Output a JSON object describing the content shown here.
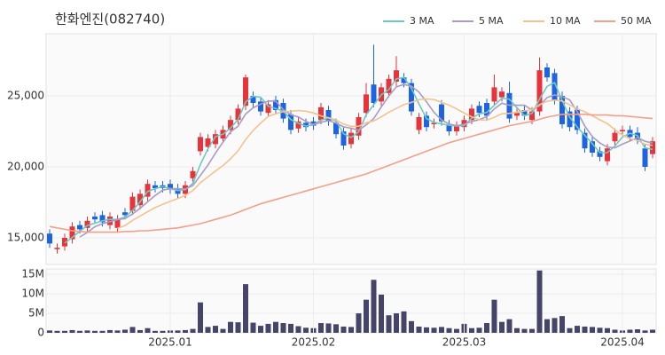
{
  "chart_data": [
    {
      "type": "candlestick",
      "title": "한화엔진(082740)",
      "open": [
        15300,
        14200,
        14400,
        14900,
        15900,
        15700,
        16500,
        16600,
        15900,
        15700,
        16800,
        16900,
        17300,
        17900,
        18700,
        18700,
        18800,
        18500,
        18100,
        19200,
        21100,
        21400,
        21600,
        22000,
        22600,
        23300,
        24300,
        25000,
        24600,
        23800,
        24700,
        24500,
        23700,
        22700,
        23100,
        23200,
        23300,
        24000,
        23100,
        22500,
        21600,
        22200,
        23800,
        25800,
        24600,
        25200,
        26000,
        26300,
        25900,
        22600,
        23600,
        23000,
        24400,
        23000,
        22500,
        22800,
        23300,
        24300,
        24500,
        24600,
        24900,
        25200,
        23600,
        24000,
        23300,
        23900,
        27000,
        26600,
        25000,
        23900,
        24000,
        22400,
        21800,
        21100,
        20400,
        21800,
        22500,
        22600,
        22400,
        21300,
        20900
      ],
      "high": [
        15600,
        14600,
        15300,
        16100,
        16200,
        16500,
        16800,
        16900,
        16800,
        16600,
        17100,
        18200,
        18400,
        19100,
        19000,
        19000,
        19100,
        18800,
        19000,
        20000,
        22400,
        22300,
        22600,
        22900,
        23600,
        24400,
        26500,
        25300,
        24900,
        24700,
        25000,
        24800,
        24000,
        23500,
        23400,
        23500,
        24500,
        24300,
        23400,
        22800,
        22700,
        23800,
        25900,
        28600,
        25900,
        26500,
        27800,
        26600,
        26200,
        23800,
        23900,
        23400,
        24700,
        23300,
        23200,
        23600,
        24400,
        24600,
        24800,
        26500,
        25600,
        26000,
        24100,
        24300,
        24200,
        27700,
        27300,
        26900,
        25300,
        24200,
        24300,
        22700,
        22100,
        21400,
        21600,
        22700,
        22900,
        22900,
        22800,
        21600,
        22100
      ],
      "low": [
        14300,
        13900,
        14100,
        14600,
        15300,
        15400,
        16000,
        15800,
        15600,
        15400,
        16300,
        16600,
        17000,
        17600,
        18200,
        18200,
        18100,
        17800,
        17800,
        18900,
        20800,
        21100,
        21300,
        21700,
        22300,
        23000,
        24000,
        24200,
        23600,
        23500,
        23700,
        23100,
        22300,
        22400,
        22500,
        22600,
        23000,
        22900,
        22000,
        21200,
        21300,
        21900,
        23500,
        24200,
        24300,
        24900,
        25700,
        25600,
        23600,
        22300,
        22500,
        22700,
        22900,
        22200,
        22200,
        22500,
        23000,
        23500,
        23300,
        24300,
        24600,
        23100,
        23300,
        23300,
        23000,
        23600,
        26000,
        24400,
        22700,
        22500,
        22300,
        21000,
        20700,
        20400,
        20100,
        21500,
        22200,
        21800,
        21600,
        19700,
        20600
      ],
      "close": [
        14600,
        14300,
        15000,
        15800,
        15600,
        16200,
        16300,
        16100,
        16500,
        16300,
        16600,
        17900,
        18100,
        18800,
        18500,
        18500,
        18400,
        18100,
        18700,
        19700,
        22100,
        22000,
        22300,
        22600,
        23300,
        24100,
        26300,
        24500,
        23900,
        24400,
        24000,
        23400,
        22600,
        23200,
        22800,
        22900,
        24200,
        23200,
        22300,
        21500,
        22400,
        23500,
        25100,
        24500,
        25600,
        26200,
        26800,
        25900,
        23900,
        23500,
        22800,
        23100,
        23200,
        22500,
        22900,
        23300,
        24100,
        23800,
        23600,
        25600,
        25300,
        23400,
        23800,
        23600,
        23900,
        26800,
        26300,
        24700,
        23000,
        22800,
        22600,
        21300,
        21000,
        20700,
        21300,
        22400,
        22600,
        22100,
        21900,
        20000,
        21800
      ],
      "up_color": "#e8333a",
      "down_color": "#1e64e0",
      "series": [
        {
          "name": "3 MA",
          "color": "#6cc9c4",
          "values": [
            null,
            null,
            14633,
            15033,
            15467,
            15867,
            16033,
            16200,
            16300,
            16300,
            16467,
            16933,
            17533,
            18267,
            18467,
            18600,
            18467,
            18333,
            18400,
            18833,
            20167,
            21267,
            22133,
            22300,
            22733,
            23333,
            24567,
            24967,
            24900,
            24267,
            24100,
            23933,
            23333,
            23067,
            22867,
            22967,
            23300,
            23433,
            23233,
            22333,
            22067,
            22467,
            23667,
            24367,
            25067,
            25433,
            26200,
            26300,
            25533,
            24433,
            23400,
            23133,
            23033,
            22933,
            22867,
            22900,
            23433,
            23733,
            23833,
            24333,
            24833,
            24767,
            24167,
            23600,
            23767,
            24767,
            25667,
            25933,
            24667,
            23500,
            22800,
            22233,
            21633,
            21000,
            21000,
            21467,
            22100,
            22367,
            22200,
            21333,
            21233
          ]
        },
        {
          "name": "5 MA",
          "color": "#a99bc6",
          "values": [
            null,
            null,
            null,
            null,
            15060,
            15380,
            15780,
            16000,
            16140,
            16280,
            16360,
            16680,
            17080,
            17540,
            17980,
            18360,
            18460,
            18460,
            18440,
            18680,
            19400,
            20120,
            20960,
            21740,
            22460,
            22860,
            23720,
            24160,
            24420,
            24640,
            24620,
            24040,
            23660,
            23520,
            23200,
            22980,
            23140,
            23260,
            23080,
            22820,
            22720,
            22580,
            22960,
            23400,
            24220,
            24980,
            25640,
            25800,
            25680,
            25260,
            24580,
            23840,
            23300,
            23020,
            22900,
            23000,
            23200,
            23320,
            23540,
            24080,
            24480,
            24340,
            24340,
            24340,
            24000,
            24300,
            24880,
            25060,
            24940,
            24720,
            23880,
            22880,
            22140,
            21680,
            21380,
            21340,
            21600,
            21820,
            22060,
            21800,
            21680
          ]
        },
        {
          "name": "10 MA",
          "color": "#f2c38f",
          "values": [
            null,
            null,
            null,
            null,
            null,
            null,
            null,
            null,
            null,
            15670,
            15870,
            16230,
            16540,
            16840,
            17130,
            17360,
            17570,
            17770,
            17990,
            18330,
            18880,
            19290,
            19710,
            20090,
            20570,
            21130,
            21920,
            22560,
            23080,
            23550,
            23740,
            23880,
            23910,
            23970,
            23920,
            23800,
            23590,
            23460,
            23300,
            23010,
            22850,
            22860,
            23110,
            23240,
            23520,
            23850,
            24110,
            24380,
            24540,
            24740,
            24780,
            24740,
            24550,
            24350,
            24080,
            23790,
            23520,
            23310,
            23280,
            23490,
            23740,
            23770,
            23830,
            23940,
            24040,
            24390,
            24610,
            24700,
            24640,
            24360,
            24090,
            23880,
            23600,
            23310,
            23050,
            22610,
            22240,
            21980,
            21870,
            21590,
            21510
          ]
        },
        {
          "name": "50 MA",
          "color": "#f2a08a",
          "values": [
            15800,
            15700,
            15600,
            15500,
            15450,
            15400,
            15400,
            15400,
            15400,
            15400,
            15450,
            15450,
            15500,
            15500,
            15550,
            15600,
            15650,
            15700,
            15800,
            15900,
            16000,
            16150,
            16300,
            16450,
            16600,
            16800,
            17000,
            17200,
            17400,
            17550,
            17700,
            17850,
            18000,
            18150,
            18300,
            18450,
            18600,
            18750,
            18900,
            19050,
            19200,
            19350,
            19500,
            19700,
            19900,
            20100,
            20300,
            20500,
            20700,
            20900,
            21100,
            21300,
            21500,
            21700,
            21850,
            22000,
            22150,
            22300,
            22450,
            22600,
            22750,
            22900,
            23000,
            23100,
            23200,
            23350,
            23500,
            23600,
            23700,
            23700,
            23700,
            23700,
            23650,
            23650,
            23650,
            23600,
            23600,
            23550,
            23500,
            23450,
            23400
          ]
        }
      ],
      "ylim": [
        13125,
        29375
      ],
      "yticks": [
        {
          "value": 15000,
          "label": "15,000"
        },
        {
          "value": 20000,
          "label": "20,000"
        },
        {
          "value": 25000,
          "label": "25,000"
        }
      ],
      "grid": true,
      "legend": "top-right"
    },
    {
      "type": "bar",
      "color": "#45456a",
      "categories": [
        null,
        null,
        null,
        null,
        null,
        null,
        null,
        null,
        null,
        null,
        null,
        null,
        null,
        null,
        null,
        null,
        "2025.01",
        null,
        null,
        null,
        null,
        null,
        null,
        null,
        null,
        null,
        null,
        null,
        null,
        null,
        null,
        null,
        null,
        null,
        null,
        "2025.02",
        null,
        null,
        null,
        null,
        null,
        null,
        null,
        null,
        null,
        null,
        null,
        null,
        null,
        null,
        null,
        null,
        null,
        null,
        null,
        "2025.03",
        null,
        null,
        null,
        null,
        null,
        null,
        null,
        null,
        null,
        null,
        null,
        null,
        null,
        null,
        null,
        null,
        null,
        null,
        null,
        null,
        "2025.04",
        null,
        null,
        null,
        null
      ],
      "values": [
        600000,
        500000,
        500000,
        700000,
        500000,
        600000,
        500000,
        500000,
        700000,
        600000,
        800000,
        1500000,
        700000,
        1200000,
        500000,
        500000,
        600000,
        600000,
        700000,
        1000000,
        7800000,
        1500000,
        1800000,
        1000000,
        2800000,
        2700000,
        12500000,
        2600000,
        1800000,
        2300000,
        2800000,
        2500000,
        2300000,
        1700000,
        1300000,
        1200000,
        2500000,
        2400000,
        2200000,
        1600000,
        1500000,
        5000000,
        8500000,
        13600000,
        9800000,
        4500000,
        5000000,
        5500000,
        3000000,
        1600000,
        1400000,
        1300000,
        1500000,
        1200000,
        1000000,
        2300000,
        1200000,
        1300000,
        2500000,
        8500000,
        2800000,
        3500000,
        1200000,
        1000000,
        1000000,
        16000000,
        3500000,
        3800000,
        4300000,
        1200000,
        1800000,
        1600000,
        1500000,
        1300000,
        1200000,
        800000,
        600000,
        800000,
        900000,
        600000,
        800000
      ],
      "ylim": [
        0,
        16400000
      ],
      "yticks": [
        0,
        {
          "value": 5000000,
          "label": "5M"
        },
        {
          "value": 10000000,
          "label": "10M"
        },
        {
          "value": 15000000,
          "label": "15M"
        }
      ],
      "grid": true
    }
  ]
}
